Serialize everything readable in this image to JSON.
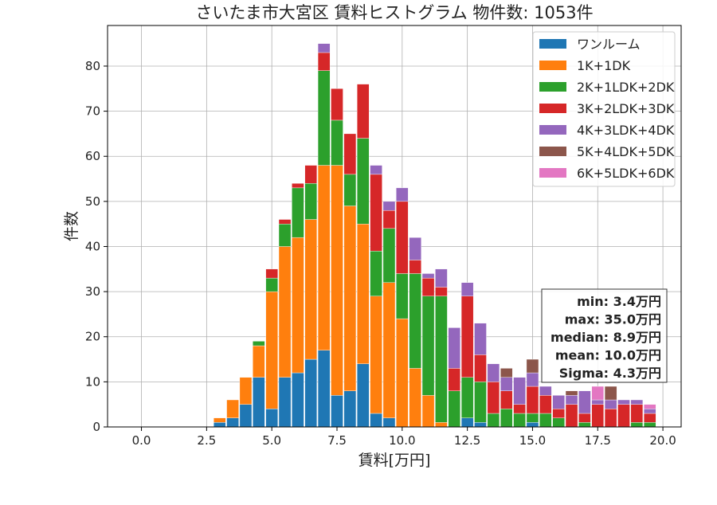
{
  "chart_data": {
    "type": "bar",
    "stacked": true,
    "title": "さいたま市大宮区 賃料ヒストグラム  物件数: 1053件",
    "xlabel": "賃料[万円]",
    "ylabel": "件数",
    "xlim": [
      -1.3,
      20.7
    ],
    "ylim": [
      0,
      89
    ],
    "xticks": [
      0.0,
      2.5,
      5.0,
      7.5,
      10.0,
      12.5,
      15.0,
      17.5,
      20.0
    ],
    "xtick_labels": [
      "0.0",
      "2.5",
      "5.0",
      "7.5",
      "10.0",
      "12.5",
      "15.0",
      "17.5",
      "20.0"
    ],
    "yticks": [
      0,
      10,
      20,
      30,
      40,
      50,
      60,
      70,
      80
    ],
    "ytick_labels": [
      "0",
      "10",
      "20",
      "30",
      "40",
      "50",
      "60",
      "70",
      "80"
    ],
    "grid": true,
    "legend_position": "top-right",
    "bin_width": 0.5,
    "x": [
      3.0,
      3.5,
      4.0,
      4.5,
      5.0,
      5.5,
      6.0,
      6.5,
      7.0,
      7.5,
      8.0,
      8.5,
      9.0,
      9.5,
      10.0,
      10.5,
      11.0,
      11.5,
      12.0,
      12.5,
      13.0,
      13.5,
      14.0,
      14.5,
      15.0,
      15.5,
      16.0,
      16.5,
      17.0,
      17.5,
      18.0,
      18.5,
      19.0,
      19.5
    ],
    "series": [
      {
        "name": "ワンルーム",
        "color": "#1f77b4",
        "values": [
          1,
          2,
          5,
          11,
          4,
          11,
          12,
          15,
          17,
          7,
          8,
          14,
          3,
          2,
          0,
          0,
          0,
          0,
          0,
          2,
          1,
          0,
          0,
          0,
          1,
          0,
          0,
          0,
          0,
          0,
          0,
          0,
          0,
          0
        ]
      },
      {
        "name": "1K+1DK",
        "color": "#ff7f0e",
        "values": [
          1,
          4,
          6,
          7,
          26,
          29,
          30,
          31,
          41,
          51,
          41,
          31,
          26,
          30,
          24,
          13,
          7,
          1,
          0,
          0,
          0,
          0,
          0,
          0,
          0,
          0,
          0,
          0,
          0,
          0,
          0,
          0,
          0,
          0
        ]
      },
      {
        "name": "2K+1LDK+2DK",
        "color": "#2ca02c",
        "values": [
          0,
          0,
          0,
          1,
          3,
          5,
          11,
          8,
          21,
          10,
          7,
          19,
          10,
          12,
          10,
          21,
          22,
          28,
          8,
          9,
          9,
          3,
          4,
          3,
          2,
          3,
          2,
          0,
          1,
          0,
          0,
          0,
          1,
          1
        ]
      },
      {
        "name": "3K+2LDK+3DK",
        "color": "#d62728",
        "values": [
          0,
          0,
          0,
          0,
          2,
          1,
          1,
          4,
          4,
          7,
          9,
          12,
          17,
          4,
          16,
          3,
          4,
          2,
          5,
          18,
          6,
          7,
          4,
          2,
          6,
          4,
          2,
          5,
          2,
          5,
          4,
          5,
          4,
          2
        ]
      },
      {
        "name": "4K+3LDK+4DK",
        "color": "#9467bd",
        "values": [
          0,
          0,
          0,
          0,
          0,
          0,
          0,
          0,
          2,
          0,
          0,
          0,
          2,
          2,
          3,
          5,
          1,
          4,
          9,
          3,
          7,
          4,
          3,
          6,
          3,
          2,
          3,
          2,
          5,
          1,
          2,
          1,
          1,
          1
        ]
      },
      {
        "name": "5K+4LDK+5DK",
        "color": "#8c564b",
        "values": [
          0,
          0,
          0,
          0,
          0,
          0,
          0,
          0,
          0,
          0,
          0,
          0,
          0,
          0,
          0,
          0,
          0,
          0,
          0,
          0,
          0,
          0,
          2,
          0,
          3,
          0,
          0,
          1,
          0,
          0,
          3,
          0,
          0,
          0
        ]
      },
      {
        "name": "6K+5LDK+6DK",
        "color": "#e377c2",
        "values": [
          0,
          0,
          0,
          0,
          0,
          0,
          0,
          0,
          0,
          0,
          0,
          0,
          0,
          0,
          0,
          0,
          0,
          0,
          0,
          0,
          0,
          0,
          0,
          0,
          0,
          0,
          0,
          0,
          0,
          3,
          0,
          0,
          0,
          1
        ]
      }
    ],
    "stats_box": [
      "min: 3.4万円",
      "max: 35.0万円",
      "median: 8.9万円",
      "mean: 10.0万円",
      "Sigma: 4.3万円"
    ]
  }
}
